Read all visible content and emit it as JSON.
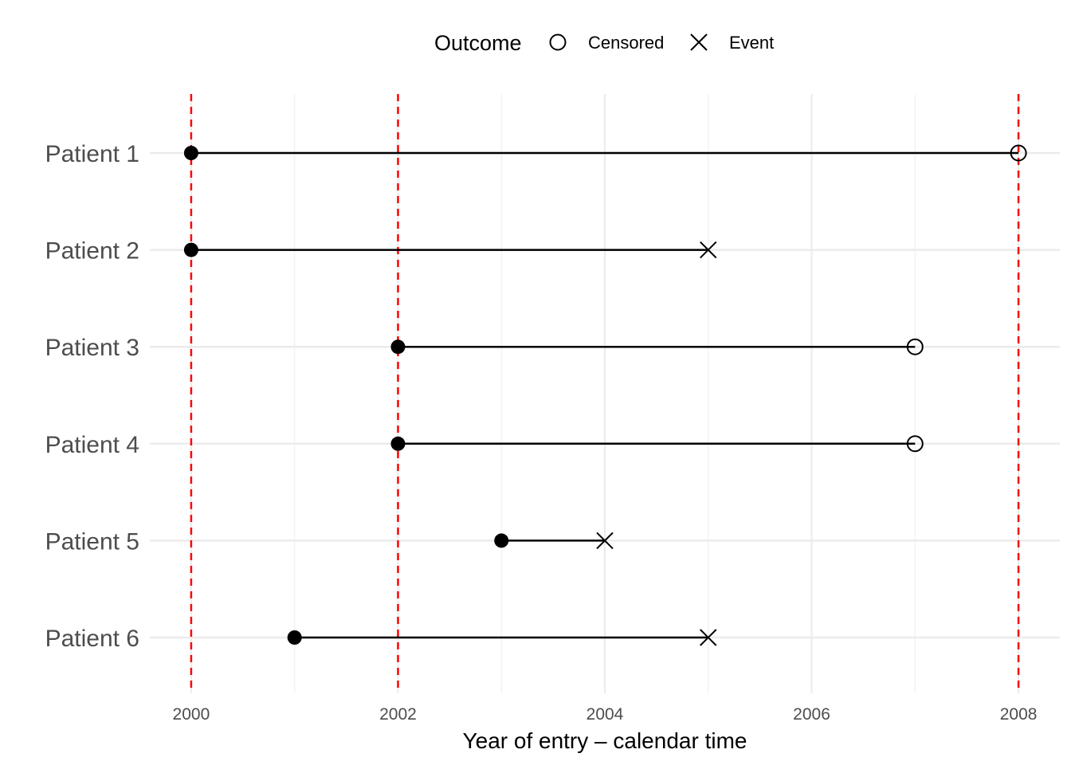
{
  "chart_data": {
    "type": "timeline",
    "title": "",
    "xlabel": "Year of entry – calendar time",
    "ylabel": "",
    "xlim": [
      1999.6,
      2008.4
    ],
    "x_ticks": [
      2000,
      2002,
      2004,
      2006,
      2008
    ],
    "x_minor_ticks": [
      2001,
      2003,
      2005,
      2007
    ],
    "grid": true,
    "reference_lines": {
      "x": [
        2000,
        2002,
        2008
      ],
      "color": "#ff0000",
      "style": "dashed"
    },
    "legend": {
      "title": "Outcome",
      "position": "top",
      "entries": [
        {
          "label": "Censored",
          "symbol": "open-circle"
        },
        {
          "label": "Event",
          "symbol": "cross"
        }
      ]
    },
    "series": [
      {
        "label": "Patient 1",
        "entry": 2000,
        "exit": 2008,
        "outcome": "Censored"
      },
      {
        "label": "Patient 2",
        "entry": 2000,
        "exit": 2005,
        "outcome": "Event"
      },
      {
        "label": "Patient 3",
        "entry": 2002,
        "exit": 2007,
        "outcome": "Censored"
      },
      {
        "label": "Patient 4",
        "entry": 2002,
        "exit": 2007,
        "outcome": "Censored"
      },
      {
        "label": "Patient 5",
        "entry": 2003,
        "exit": 2004,
        "outcome": "Event"
      },
      {
        "label": "Patient 6",
        "entry": 2001,
        "exit": 2005,
        "outcome": "Event"
      }
    ]
  },
  "colors": {
    "grid_major": "#ebebeb",
    "grid_minor": "#f3f3f3",
    "reference_line": "#ff0000",
    "segment": "#000000"
  }
}
